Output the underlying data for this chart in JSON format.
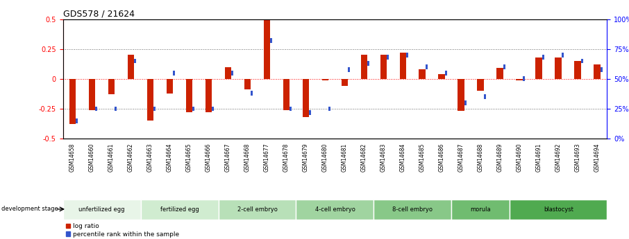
{
  "title": "GDS578 / 21624",
  "samples": [
    "GSM14658",
    "GSM14660",
    "GSM14661",
    "GSM14662",
    "GSM14663",
    "GSM14664",
    "GSM14665",
    "GSM14666",
    "GSM14667",
    "GSM14668",
    "GSM14677",
    "GSM14678",
    "GSM14679",
    "GSM14680",
    "GSM14681",
    "GSM14682",
    "GSM14683",
    "GSM14684",
    "GSM14685",
    "GSM14686",
    "GSM14687",
    "GSM14688",
    "GSM14689",
    "GSM14690",
    "GSM14691",
    "GSM14692",
    "GSM14693",
    "GSM14694"
  ],
  "log_ratio": [
    -0.38,
    -0.26,
    -0.13,
    0.2,
    -0.35,
    -0.12,
    -0.28,
    -0.28,
    0.1,
    -0.09,
    0.49,
    -0.26,
    -0.32,
    -0.01,
    -0.06,
    0.2,
    0.2,
    0.22,
    0.08,
    0.04,
    -0.27,
    -0.1,
    0.09,
    -0.01,
    0.18,
    0.18,
    0.15,
    0.12
  ],
  "percentile": [
    15,
    25,
    25,
    65,
    25,
    55,
    25,
    25,
    55,
    38,
    82,
    25,
    22,
    25,
    58,
    63,
    68,
    70,
    60,
    55,
    30,
    35,
    60,
    50,
    68,
    70,
    65,
    58
  ],
  "stages": [
    {
      "label": "unfertilized egg",
      "start": 0,
      "end": 4
    },
    {
      "label": "fertilized egg",
      "start": 4,
      "end": 8
    },
    {
      "label": "2-cell embryo",
      "start": 8,
      "end": 12
    },
    {
      "label": "4-cell embryo",
      "start": 12,
      "end": 16
    },
    {
      "label": "8-cell embryo",
      "start": 16,
      "end": 20
    },
    {
      "label": "morula",
      "start": 20,
      "end": 23
    },
    {
      "label": "blastocyst",
      "start": 23,
      "end": 28
    }
  ],
  "stage_colors": [
    "#e8f5e8",
    "#d0ecd0",
    "#b8e0b8",
    "#a0d4a0",
    "#88c888",
    "#70bc70",
    "#50aa50"
  ],
  "ylim": [
    -0.5,
    0.5
  ],
  "bar_color_red": "#cc2200",
  "bar_color_blue": "#3355cc",
  "background_color": "#ffffff",
  "dotted_vals": [
    -0.25,
    0.0,
    0.25
  ],
  "right_yticks": [
    0,
    25,
    50,
    75,
    100
  ],
  "right_yticklabels": [
    "0%",
    "25%",
    "50%",
    "75%",
    "100%"
  ],
  "left_yticks": [
    -0.5,
    -0.25,
    0.0,
    0.25,
    0.5
  ],
  "left_yticklabels": [
    "-0.5",
    "-0.25",
    "0",
    "0.25",
    "0.5"
  ]
}
